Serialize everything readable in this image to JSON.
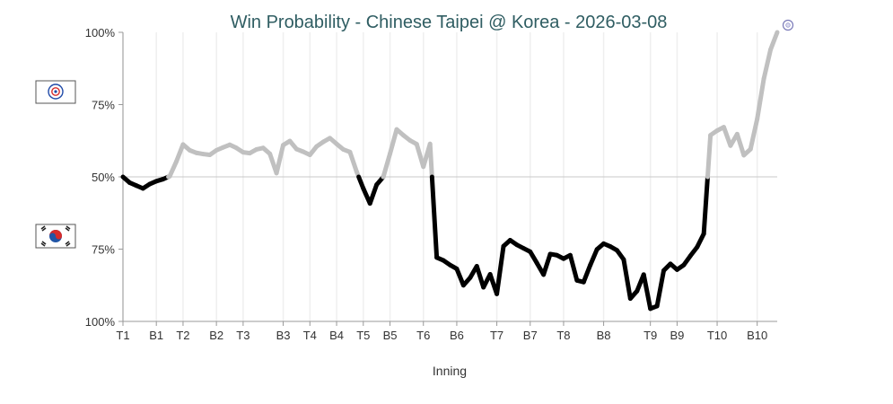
{
  "chart_data": {
    "type": "line",
    "title": "Win Probability - Chinese Taipei @ Korea - 2026-03-08",
    "xlabel": "Inning",
    "ylabel": "",
    "y_tick_labels": [
      "100%",
      "75%",
      "50%",
      "75%",
      "100%"
    ],
    "ylim": [
      0,
      100
    ],
    "x_ticks": [
      {
        "label": "T1",
        "play": 0
      },
      {
        "label": "B1",
        "play": 5
      },
      {
        "label": "T2",
        "play": 9
      },
      {
        "label": "B2",
        "play": 14
      },
      {
        "label": "T3",
        "play": 18
      },
      {
        "label": "B3",
        "play": 24
      },
      {
        "label": "T4",
        "play": 28
      },
      {
        "label": "B4",
        "play": 32
      },
      {
        "label": "T5",
        "play": 36
      },
      {
        "label": "B5",
        "play": 40
      },
      {
        "label": "T6",
        "play": 45
      },
      {
        "label": "B6",
        "play": 50
      },
      {
        "label": "T7",
        "play": 56
      },
      {
        "label": "B7",
        "play": 61
      },
      {
        "label": "T8",
        "play": 66
      },
      {
        "label": "B8",
        "play": 72
      },
      {
        "label": "T9",
        "play": 79
      },
      {
        "label": "B9",
        "play": 83
      },
      {
        "label": "T10",
        "play": 89
      },
      {
        "label": "B10",
        "play": 95
      }
    ],
    "series": [
      {
        "name": "",
        "x": [
          0,
          1,
          2,
          3,
          4,
          5,
          6,
          7,
          8,
          9,
          10,
          11,
          12,
          13,
          14,
          15,
          16,
          17,
          18,
          19,
          20,
          21,
          22,
          23,
          24,
          25,
          26,
          27,
          28,
          29,
          30,
          31,
          32,
          33,
          34,
          35,
          36,
          37,
          38,
          39,
          40,
          41,
          42,
          43,
          44,
          45,
          46,
          47,
          48,
          49,
          50,
          51,
          52,
          53,
          54,
          55,
          56,
          57,
          58,
          59,
          60,
          61,
          62,
          63,
          64,
          65,
          66,
          67,
          68,
          69,
          70,
          71,
          72,
          73,
          74,
          75,
          76,
          77,
          78,
          79,
          80,
          81,
          82,
          83,
          84,
          85,
          86,
          87,
          88,
          89,
          90,
          91,
          92,
          93,
          94,
          95,
          96,
          97,
          98
        ],
        "values": [
          50,
          48,
          47,
          46,
          47.5,
          48.5,
          49.2,
          50.2,
          55.3,
          61.2,
          59.2,
          58.3,
          57.9,
          57.6,
          59.2,
          60.2,
          61.1,
          60,
          58.5,
          58.2,
          59.5,
          60,
          58,
          51.3,
          61,
          62.4,
          59.6,
          58.7,
          57.6,
          60.5,
          62.1,
          63.4,
          61.4,
          59.5,
          58.6,
          51.8,
          46,
          40.8,
          47.3,
          50,
          58,
          66.4,
          64.4,
          62.6,
          61.3,
          53.5,
          61.4,
          22.1,
          21.1,
          19.5,
          18.2,
          12.5,
          15.1,
          19.1,
          11.8,
          16.3,
          9.5,
          26,
          28.1,
          26.5,
          25.3,
          24.1,
          20.2,
          16.2,
          23.3,
          22.9,
          21.7,
          22.9,
          14.2,
          13.6,
          19.5,
          24.9,
          26.9,
          25.9,
          24.6,
          21.4,
          7.9,
          10.5,
          16.2,
          4.4,
          5.3,
          17.6,
          19.9,
          17.9,
          19.5,
          22.7,
          25.7,
          30.3,
          64.4,
          66,
          67.2,
          60.8,
          64.8,
          57.5,
          59.6,
          70,
          84,
          94,
          100
        ]
      }
    ],
    "colors": {
      "korea": "#000000",
      "taipei": "#c0c0c0",
      "title": "#2f5d62",
      "baseline": "#c8c8c8",
      "grid": "#efefef",
      "axis": "#999999"
    },
    "legend": {
      "top_flag_icon": "chinese-taipei-flag-icon",
      "bottom_flag_icon": "korea-flag-icon",
      "end_marker_icon": "chinese-taipei-logo-icon"
    },
    "grid": true,
    "legend_placement": "left"
  }
}
